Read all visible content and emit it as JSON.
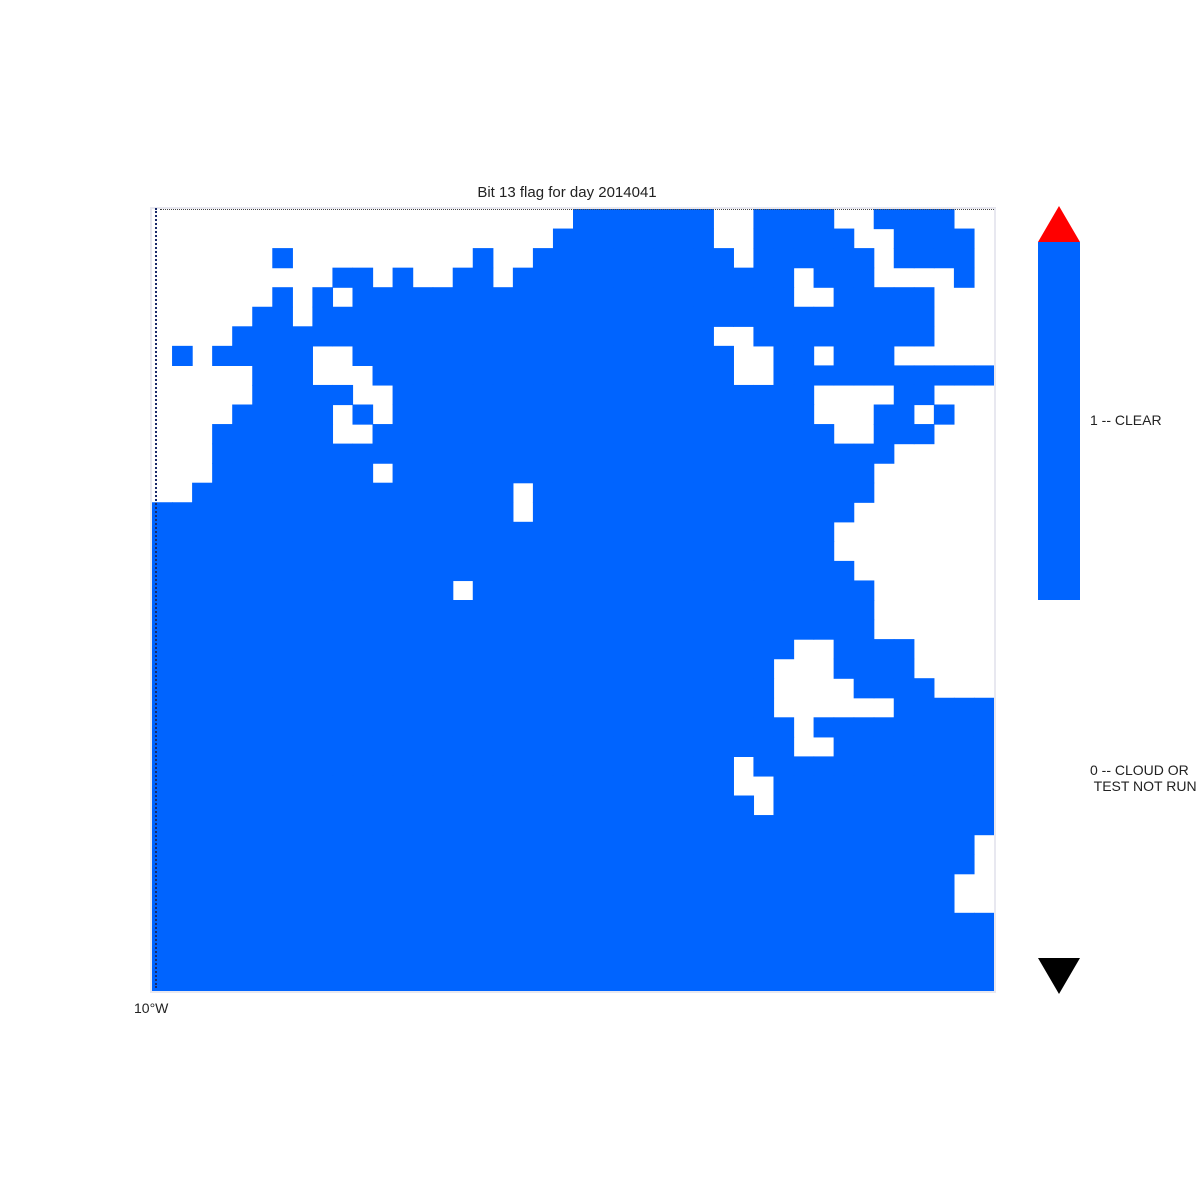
{
  "title": "Bit 13 flag for day 2014041",
  "longitude_label": "10°W",
  "colorbar": {
    "labels": [
      {
        "value": 1,
        "text": "1 -- CLEAR"
      },
      {
        "value": 0,
        "text": "0 -- CLOUD OR\n TEST NOT RUN"
      }
    ],
    "colors": {
      "clear": "#0064ff",
      "cloud": "#ffffff",
      "over": "#ff0000",
      "under": "#000000"
    }
  },
  "grid": {
    "cols": 42,
    "rows": 40,
    "encoding": "1 = clear, 0 = cloud or test not run",
    "cells": [
      "000000000000000000000111111100111100111100",
      "000000000000000000001111111100111110011110",
      "000000100000000010011111111110111111011110",
      "000000000110100110111111111111110111000010",
      "000000101011111111111111111111110011111000",
      "000001101111111111111111111111111111111000",
      "000011111111111111111111111100111111111000",
      "010111110011111111111111111110011011100000",
      "000001110001111111111111111110011111111111",
      "000001111100111111111111111111111000011000",
      "000011111010111111111111111111111000110100",
      "000111111001111111111111111111111100111000",
      "000111111111111111111111111111111111100000",
      "000111111110111111111111111111111111000000",
      "001111111111111111011111111111111111000000",
      "111111111111111111011111111111111110000000",
      "111111111111111111111111111111111100000000",
      "111111111111111111111111111111111100000000",
      "111111111111111111111111111111111110000000",
      "111111111111111011111111111111111111000000",
      "111111111111111111111111111111111111000000",
      "111111111111111111111111111111111111000000",
      "111111111111111111111111111111110011110000",
      "111111111111111111111111111111100011110000",
      "111111111111111111111111111111100001111000",
      "111111111111111111111111111111100000011111",
      "111111111111111111111111111111110111111111",
      "111111111111111111111111111111110011111111",
      "111111111111111111111111111110111111111111",
      "111111111111111111111111111110011111111111",
      "111111111111111111111111111111011111111111",
      "111111111111111111111111111111111111111111",
      "111111111111111111111111111111111111111110",
      "111111111111111111111111111111111111111110",
      "111111111111111111111111111111111111111100",
      "111111111111111111111111111111111111111100",
      "111111111111111111111111111111111111111111",
      "111111111111111111111111111111111111111111",
      "111111111111111111111111111111111111111111",
      "111111111111111111111111111111111111111111"
    ]
  }
}
